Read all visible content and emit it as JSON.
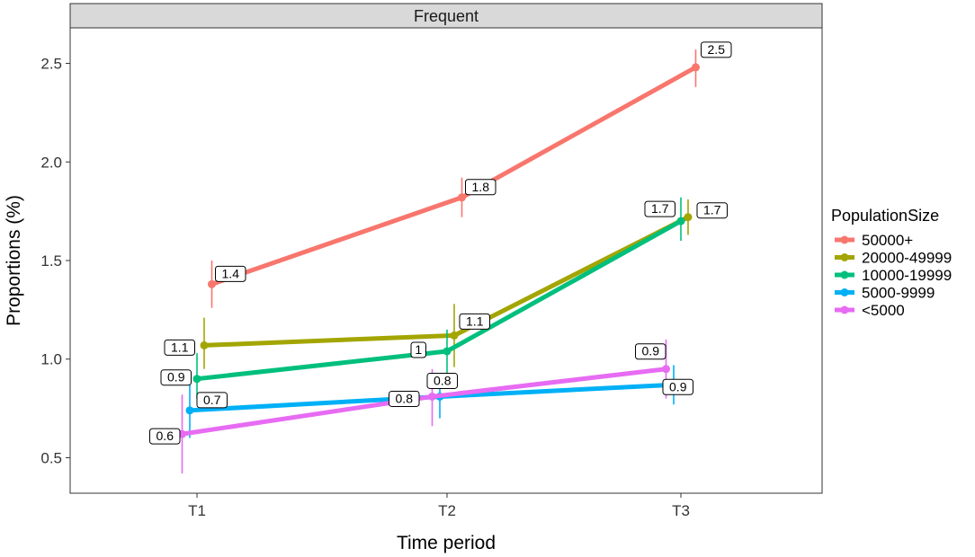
{
  "chart_data": {
    "type": "line",
    "facet_title": "Frequent",
    "xlabel": "Time period",
    "ylabel": "Proportions (%)",
    "categories": [
      "T1",
      "T2",
      "T3"
    ],
    "y_ticks": [
      0.5,
      1.0,
      1.5,
      2.0,
      2.5
    ],
    "y_tick_labels": [
      "0.5",
      "1.0",
      "1.5",
      "2.0",
      "2.5"
    ],
    "ylim": [
      0.32,
      2.68
    ],
    "grid": false,
    "legend_title": "PopulationSize",
    "legend_position": "right",
    "error_bars": true,
    "series": [
      {
        "name": "50000+",
        "color": "#F8766D",
        "values": [
          1.38,
          1.82,
          2.48
        ],
        "err_low": [
          1.26,
          1.72,
          2.38
        ],
        "err_high": [
          1.5,
          1.92,
          2.57
        ],
        "labels": [
          "1.4",
          "1.8",
          "2.5"
        ]
      },
      {
        "name": "20000-49999",
        "color": "#A3A500",
        "values": [
          1.07,
          1.12,
          1.72
        ],
        "err_low": [
          0.95,
          0.96,
          1.63
        ],
        "err_high": [
          1.21,
          1.28,
          1.81
        ],
        "labels": [
          "1.1",
          "1.1",
          "1.7"
        ]
      },
      {
        "name": "10000-19999",
        "color": "#00BF7D",
        "values": [
          0.9,
          1.04,
          1.7
        ],
        "err_low": [
          0.8,
          0.93,
          1.6
        ],
        "err_high": [
          1.03,
          1.15,
          1.82
        ],
        "labels": [
          "0.9",
          "1",
          "1.7"
        ]
      },
      {
        "name": "5000-9999",
        "color": "#00B0F6",
        "values": [
          0.74,
          0.81,
          0.87
        ],
        "err_low": [
          0.6,
          0.7,
          0.77
        ],
        "err_high": [
          0.87,
          0.93,
          0.97
        ],
        "labels": [
          "0.7",
          "0.8",
          "0.9"
        ]
      },
      {
        "name": "<5000",
        "color": "#E76BF3",
        "values": [
          0.62,
          0.81,
          0.95
        ],
        "err_low": [
          0.42,
          0.66,
          0.8
        ],
        "err_high": [
          0.82,
          0.95,
          1.1
        ],
        "labels": [
          "0.6",
          "0.8",
          "0.9"
        ]
      }
    ]
  }
}
